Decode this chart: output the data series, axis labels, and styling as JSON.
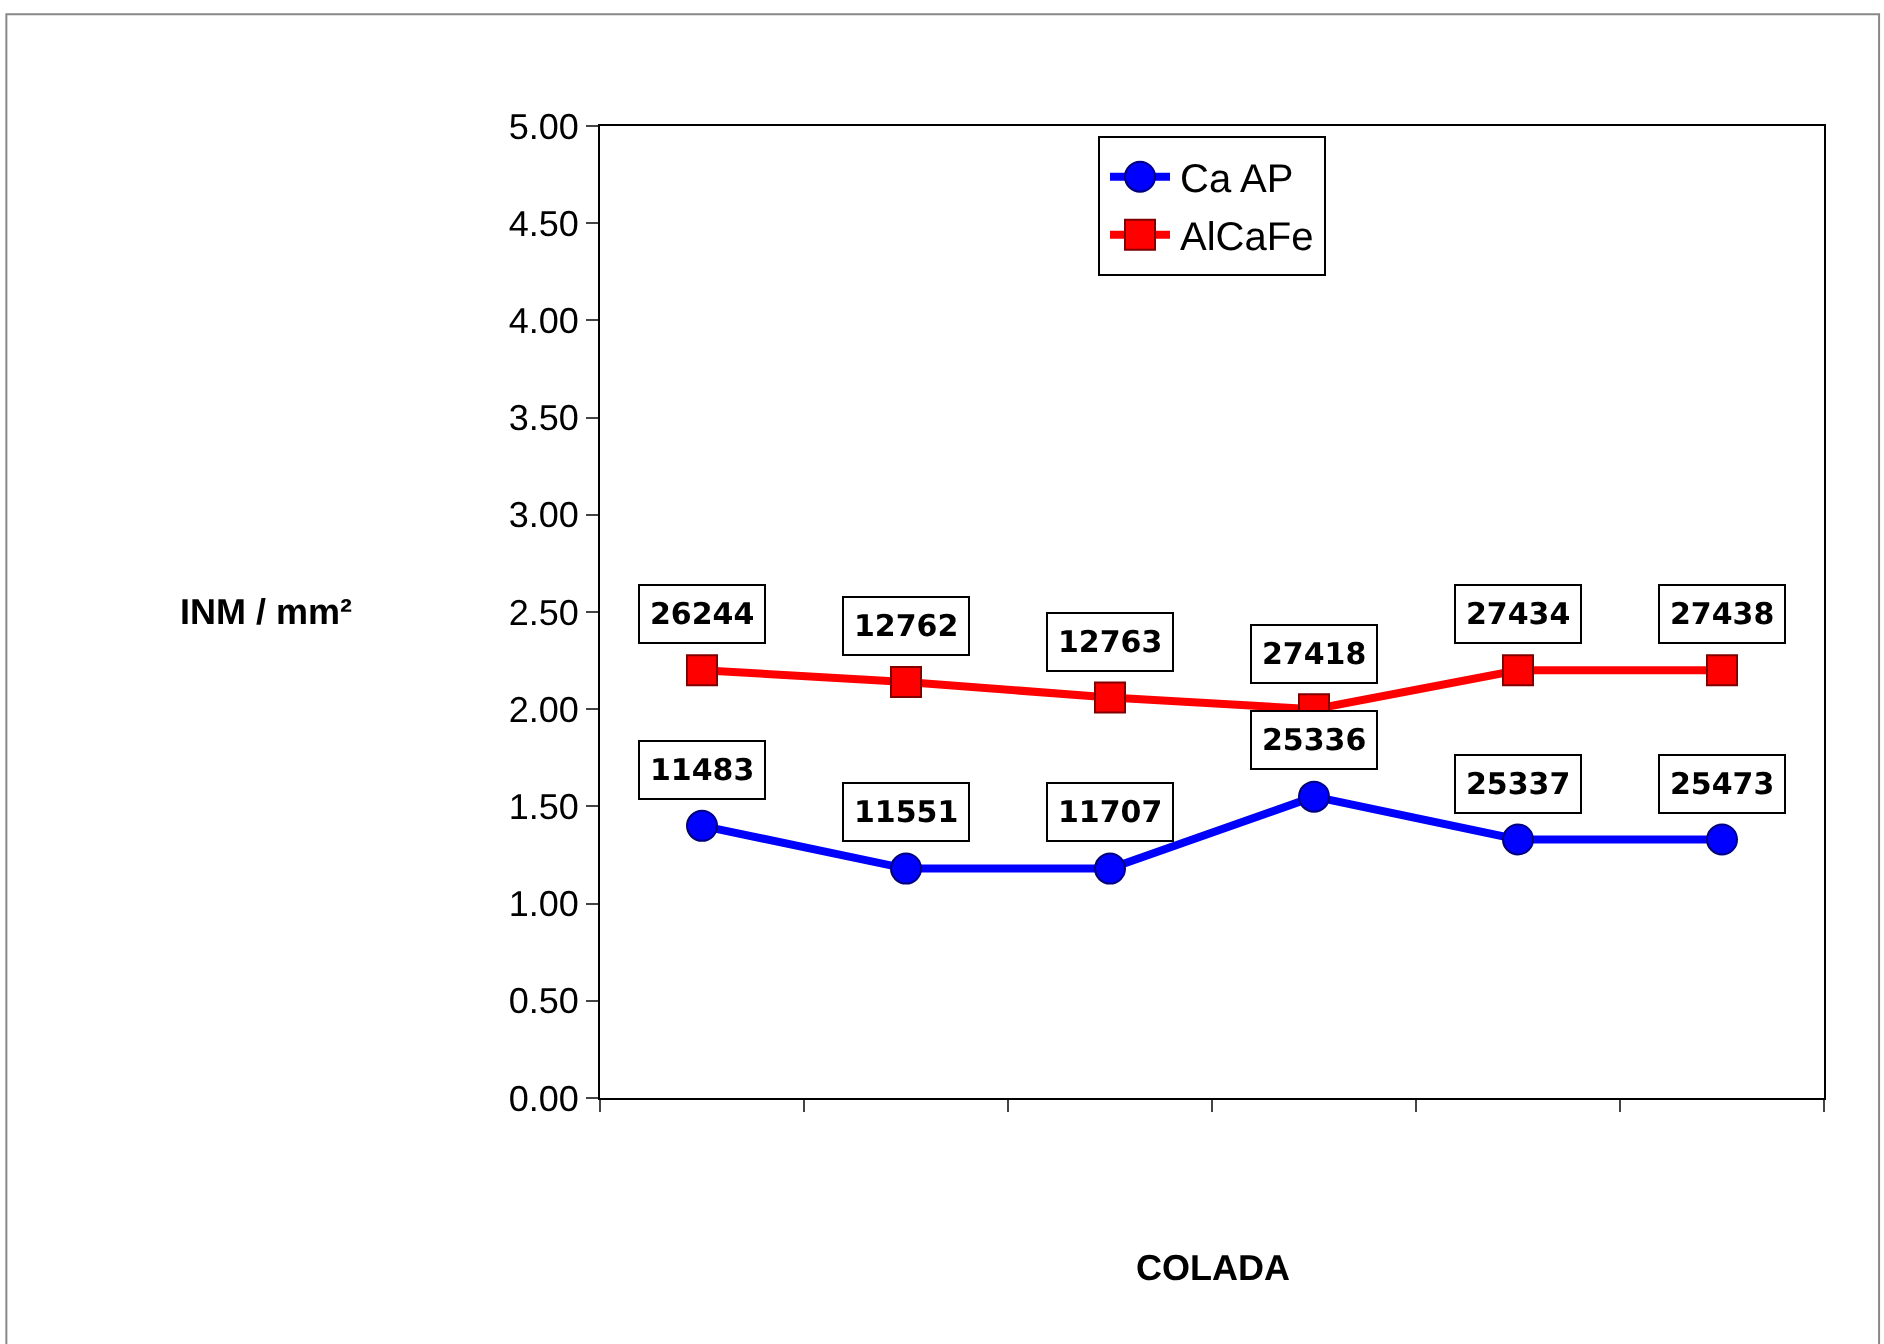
{
  "chart_data": {
    "type": "line",
    "xlabel": "COLADA",
    "ylabel": "INM / mm²",
    "categories": [
      null,
      null,
      null,
      null,
      null,
      null
    ],
    "series": [
      {
        "name": "Ca AP",
        "color": "#0000ff",
        "marker": "circle",
        "values": [
          1.4,
          1.18,
          1.18,
          1.55,
          1.33,
          1.33
        ]
      },
      {
        "name": "AlCaFe",
        "color": "#ff0000",
        "marker": "square",
        "values": [
          2.2,
          2.14,
          2.06,
          2.0,
          2.2,
          2.2
        ]
      }
    ],
    "annotations": [
      {
        "text": "11483",
        "y": 1.4
      },
      {
        "text": "11551",
        "y": 1.18
      },
      {
        "text": "11707",
        "y": 1.18
      },
      {
        "text": "25336",
        "y": 1.55
      },
      {
        "text": "25337",
        "y": 1.33
      },
      {
        "text": "25473",
        "y": 1.33
      },
      {
        "text": "26244",
        "y": 2.2
      },
      {
        "text": "12762",
        "y": 2.14
      },
      {
        "text": "12763",
        "y": 2.06
      },
      {
        "text": "27418",
        "y": 2.0
      },
      {
        "text": "27434",
        "y": 2.2
      },
      {
        "text": "27438",
        "y": 2.2
      }
    ],
    "ylim": [
      0,
      5
    ],
    "yticks": [
      {
        "value": 0,
        "label": "0.00"
      },
      {
        "value": 0.5,
        "label": "0.50"
      },
      {
        "value": 1,
        "label": "1.00"
      },
      {
        "value": 1.5,
        "label": "1.50"
      },
      {
        "value": 2,
        "label": "2.00"
      },
      {
        "value": 2.5,
        "label": "2.50"
      },
      {
        "value": 3,
        "label": "3.00"
      },
      {
        "value": 3.5,
        "label": "3.50"
      },
      {
        "value": 4,
        "label": "4.00"
      },
      {
        "value": 4.5,
        "label": "4.50"
      },
      {
        "value": 5,
        "label": "5.00"
      }
    ],
    "legend": "top",
    "line_style": "solid"
  }
}
